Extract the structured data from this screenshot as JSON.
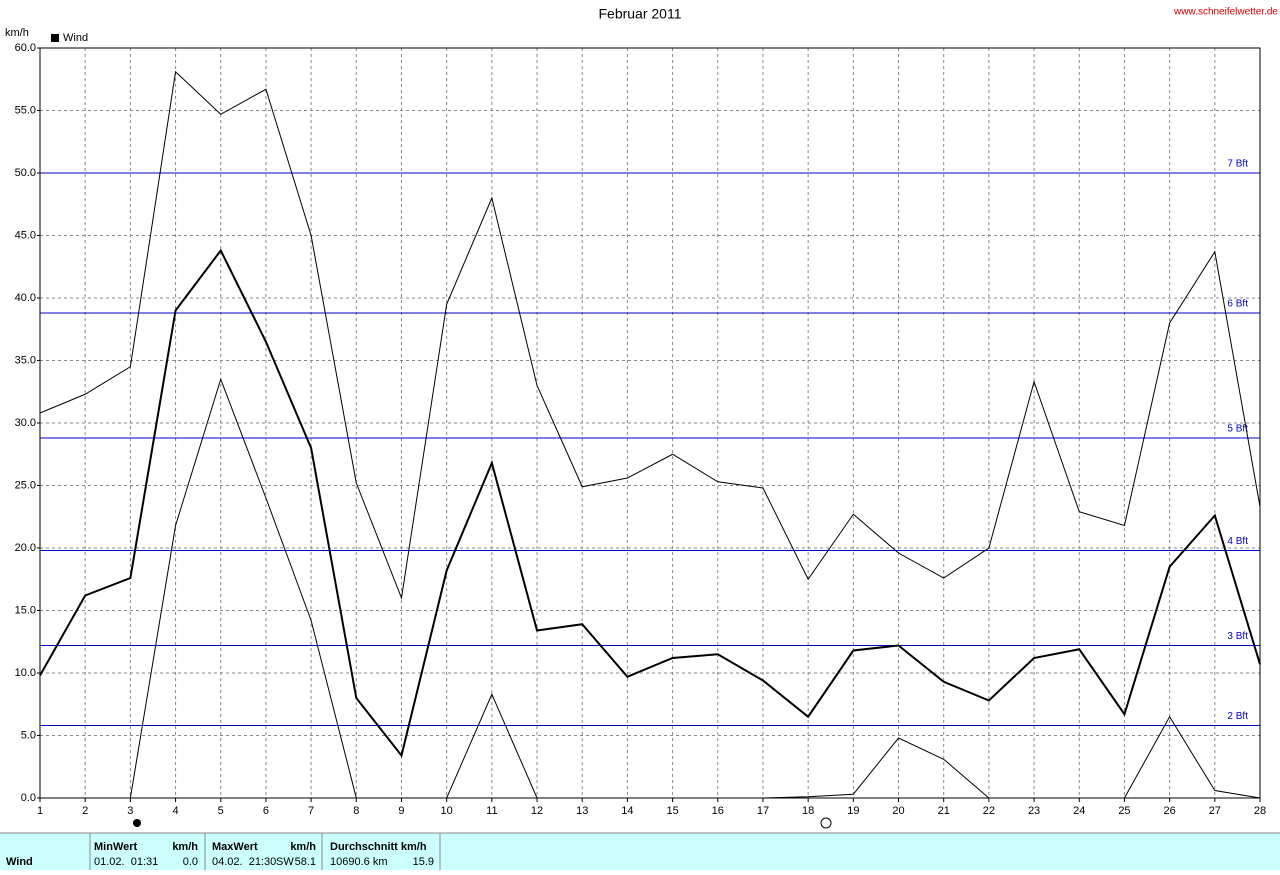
{
  "chart_data": {
    "type": "line",
    "title": "Februar 2011",
    "source": "www.schneifelwetter.de",
    "y_label": "km/h",
    "x": [
      1,
      2,
      3,
      4,
      5,
      6,
      7,
      8,
      9,
      10,
      11,
      12,
      13,
      14,
      15,
      16,
      17,
      18,
      19,
      20,
      21,
      22,
      23,
      24,
      25,
      26,
      27,
      28
    ],
    "xlim": [
      1,
      28
    ],
    "xticks": [
      1,
      2,
      3,
      4,
      5,
      6,
      7,
      8,
      9,
      10,
      11,
      12,
      13,
      14,
      15,
      16,
      17,
      18,
      19,
      20,
      21,
      22,
      23,
      24,
      25,
      26,
      27,
      28
    ],
    "ylim": [
      0,
      60
    ],
    "yticks": [
      {
        "value": 0,
        "label": "0.0"
      },
      {
        "value": 5,
        "label": "5.0"
      },
      {
        "value": 10,
        "label": "10.0"
      },
      {
        "value": 15,
        "label": "15.0"
      },
      {
        "value": 20,
        "label": "20.0"
      },
      {
        "value": 25,
        "label": "25.0"
      },
      {
        "value": 30,
        "label": "30.0"
      },
      {
        "value": 35,
        "label": "35.0"
      },
      {
        "value": 40,
        "label": "40.0"
      },
      {
        "value": 45,
        "label": "45.0"
      },
      {
        "value": 50,
        "label": "50.0"
      },
      {
        "value": 55,
        "label": "55.0"
      },
      {
        "value": 60,
        "label": "60.0"
      }
    ],
    "grid": true,
    "legend": "top-left",
    "series": [
      {
        "color": "#000000",
        "width": 1,
        "values": [
          30.8,
          32.3,
          34.5,
          58.1,
          54.7,
          56.7,
          45.0,
          25.2,
          16.0,
          39.5,
          48.0,
          33.0,
          24.9,
          25.6,
          27.5,
          25.3,
          24.8,
          17.5,
          22.7,
          19.6,
          17.6,
          20.0,
          33.3,
          22.9,
          21.8,
          38.0,
          43.7,
          23.3
        ]
      },
      {
        "name": "Wind",
        "color": "#000000",
        "width": 2,
        "values": [
          9.8,
          16.2,
          17.6,
          39.0,
          43.8,
          36.5,
          28.0,
          8.0,
          3.4,
          18.2,
          26.8,
          13.4,
          13.9,
          9.7,
          11.2,
          11.5,
          9.4,
          6.5,
          11.8,
          12.2,
          9.3,
          7.8,
          11.2,
          11.9,
          6.7,
          18.5,
          22.6,
          10.7
        ]
      },
      {
        "color": "#000000",
        "width": 1,
        "values": [
          0,
          0,
          0,
          21.8,
          33.5,
          24.0,
          14.2,
          0,
          0,
          0,
          8.3,
          0,
          0,
          0,
          0,
          0,
          0,
          0.1,
          0.3,
          4.8,
          3.1,
          0,
          0,
          0,
          0,
          6.5,
          0.6,
          0
        ]
      }
    ],
    "reference_lines": [
      {
        "value": 5.8,
        "label": "2 Bft"
      },
      {
        "value": 12.2,
        "label": "3 Bft"
      },
      {
        "value": 19.8,
        "label": "4 Bft"
      },
      {
        "value": 28.8,
        "label": "5 Bft"
      },
      {
        "value": 38.8,
        "label": "6 Bft"
      },
      {
        "value": 50.0,
        "label": "7 Bft"
      }
    ],
    "reference_color": "#0000cc"
  },
  "stats_table": {
    "row_label": "Wind",
    "min": {
      "header": "MinWert",
      "unit": "km/h",
      "time": "01.02.  01:31",
      "value": "0.0"
    },
    "max": {
      "header": "MaxWert",
      "unit": "km/h",
      "time": "04.02.  21:30",
      "direction": "SW",
      "value": "58.1"
    },
    "avg": {
      "header": "Durchschnitt km/h",
      "distance": "10690.6 km",
      "value": "15.9"
    }
  }
}
